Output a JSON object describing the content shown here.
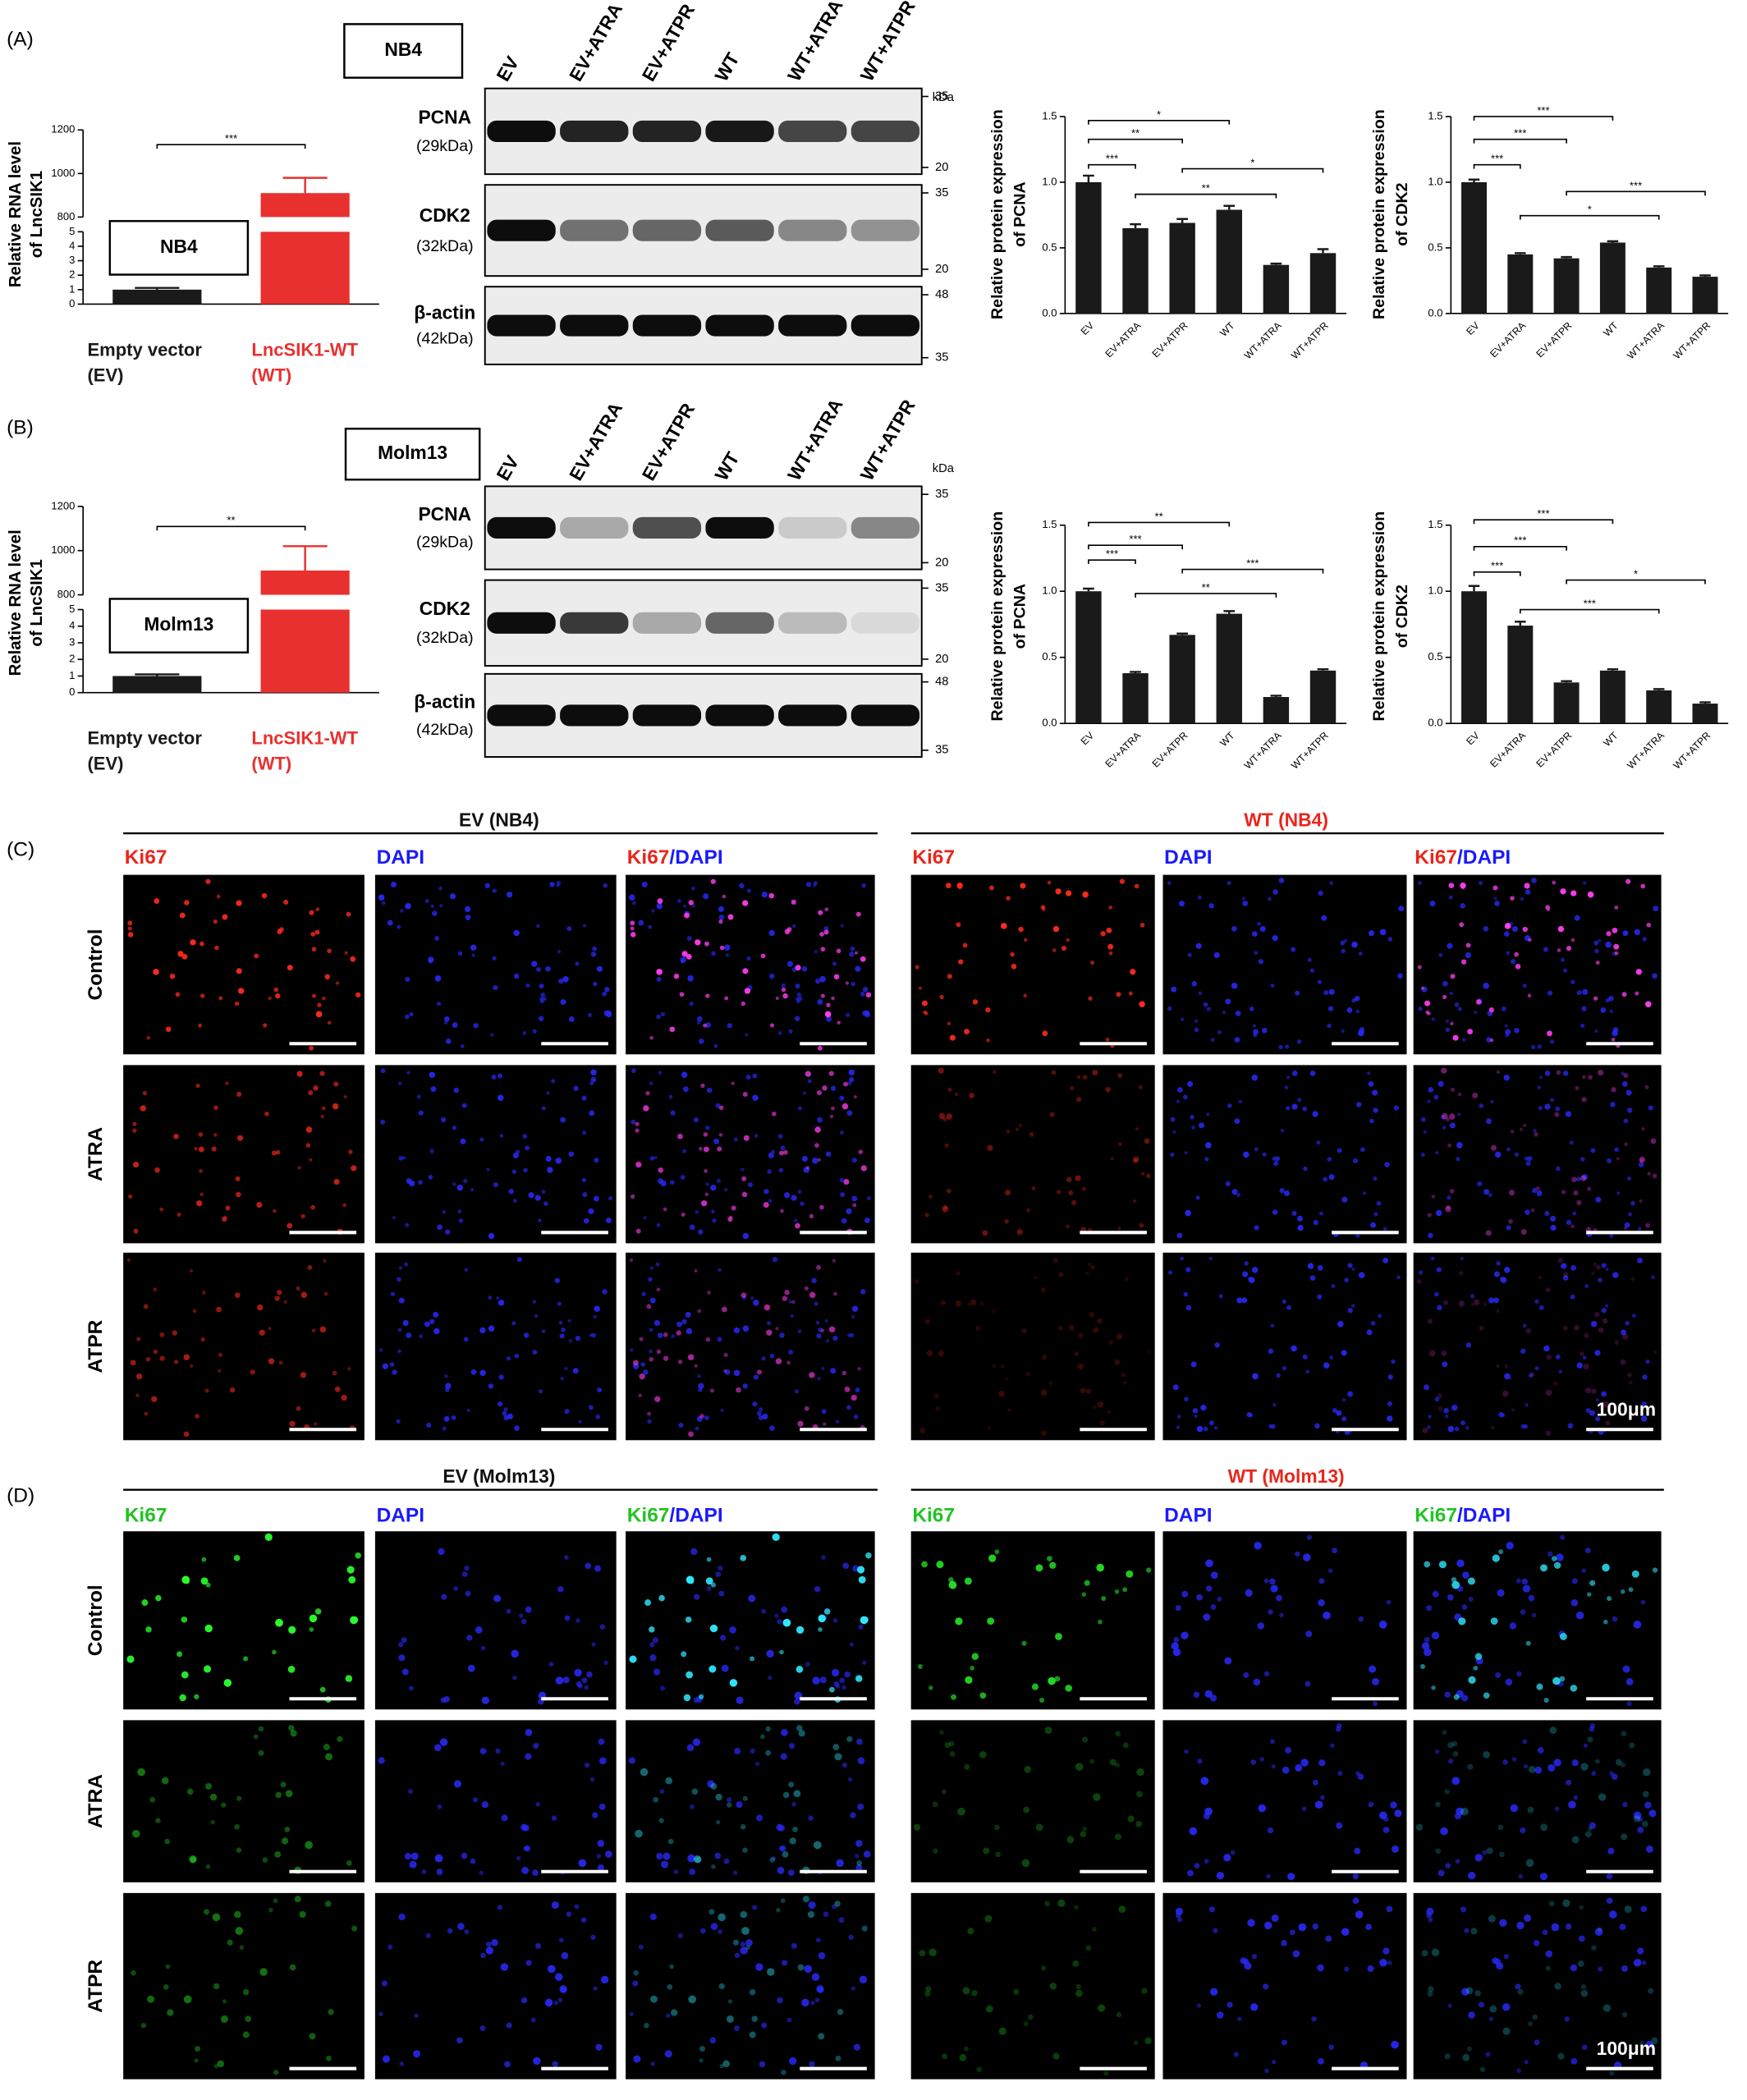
{
  "panel_labels": [
    "(A)",
    "(B)",
    "(C)",
    "(D)"
  ],
  "chart_data": [
    {
      "type": "bar",
      "ylabel": [
        "Relative RNA level",
        "of LncSIK1"
      ],
      "categories": [
        "Empty vector",
        "LncSIK1-WT"
      ],
      "category_sublabels": [
        "(EV)",
        "(WT)"
      ],
      "values": [
        1.0,
        910
      ],
      "errors": [
        0.12,
        70
      ],
      "colors": [
        "#1a1a1a",
        "#e8312f"
      ],
      "ylim": [
        0,
        1200
      ],
      "axis_break": [
        5,
        800
      ],
      "yticks": [
        0,
        1,
        2,
        3,
        4,
        5,
        800,
        1000,
        1200
      ],
      "inset_label": "NB4",
      "significance": [
        {
          "pair": [
            0,
            1
          ],
          "label": "***"
        }
      ]
    },
    {
      "type": "bar",
      "ylabel": [
        "Relative protein expression",
        "of PCNA"
      ],
      "categories": [
        "EV",
        "EV+ATRA",
        "EV+ATPR",
        "WT",
        "WT+ATRA",
        "WT+ATPR"
      ],
      "values": [
        1.0,
        0.65,
        0.69,
        0.79,
        0.37,
        0.46
      ],
      "errors": [
        0.05,
        0.03,
        0.03,
        0.03,
        0.01,
        0.03
      ],
      "color": "#1a1a1a",
      "ylim": [
        0,
        1.5
      ],
      "yticks": [
        {
          "value": 0,
          "label": "0.0"
        },
        0.5,
        {
          "value": 1,
          "label": "1.0"
        },
        1.5
      ],
      "significance": [
        {
          "pair": [
            0,
            1
          ],
          "label": "***"
        },
        {
          "pair": [
            0,
            2
          ],
          "label": "**"
        },
        {
          "pair": [
            0,
            3
          ],
          "label": "*"
        },
        {
          "pair": [
            1,
            4
          ],
          "label": "**"
        },
        {
          "pair": [
            2,
            5
          ],
          "label": "*"
        }
      ]
    },
    {
      "type": "bar",
      "ylabel": [
        "Relative protein expression",
        "of CDK2"
      ],
      "categories": [
        "EV",
        "EV+ATRA",
        "EV+ATPR",
        "WT",
        "WT+ATRA",
        "WT+ATPR"
      ],
      "values": [
        1.0,
        0.45,
        0.42,
        0.54,
        0.35,
        0.28
      ],
      "errors": [
        0.02,
        0.01,
        0.01,
        0.01,
        0.01,
        0.01
      ],
      "color": "#1a1a1a",
      "ylim": [
        0,
        1.5
      ],
      "yticks": [
        {
          "value": 0,
          "label": "0.0"
        },
        0.5,
        {
          "value": 1,
          "label": "1.0"
        },
        1.5
      ],
      "significance": [
        {
          "pair": [
            0,
            1
          ],
          "label": "***"
        },
        {
          "pair": [
            0,
            2
          ],
          "label": "***"
        },
        {
          "pair": [
            0,
            3
          ],
          "label": "***"
        },
        {
          "pair": [
            1,
            4
          ],
          "label": "*"
        },
        {
          "pair": [
            2,
            5
          ],
          "label": "***"
        }
      ]
    },
    {
      "type": "bar",
      "ylabel": [
        "Relative RNA level",
        "of LncSIK1"
      ],
      "categories": [
        "Empty vector",
        "LncSIK1-WT"
      ],
      "category_sublabels": [
        "(EV)",
        "(WT)"
      ],
      "values": [
        1.0,
        910
      ],
      "errors": [
        0.1,
        110
      ],
      "colors": [
        "#1a1a1a",
        "#e8312f"
      ],
      "ylim": [
        0,
        1200
      ],
      "axis_break": [
        5,
        800
      ],
      "yticks": [
        0,
        1,
        2,
        3,
        4,
        5,
        800,
        1000,
        1200
      ],
      "inset_label": "Molm13",
      "significance": [
        {
          "pair": [
            0,
            1
          ],
          "label": "**"
        }
      ]
    },
    {
      "type": "bar",
      "ylabel": [
        "Relative protein expression",
        "of PCNA"
      ],
      "categories": [
        "EV",
        "EV+ATRA",
        "EV+ATPR",
        "WT",
        "WT+ATRA",
        "WT+ATPR"
      ],
      "values": [
        1.0,
        0.38,
        0.67,
        0.83,
        0.2,
        0.4
      ],
      "errors": [
        0.02,
        0.01,
        0.01,
        0.02,
        0.01,
        0.01
      ],
      "color": "#1a1a1a",
      "ylim": [
        0,
        1.5
      ],
      "yticks": [
        {
          "value": 0,
          "label": "0.0"
        },
        0.5,
        {
          "value": 1,
          "label": "1.0"
        },
        1.5
      ],
      "significance": [
        {
          "pair": [
            0,
            1
          ],
          "label": "***"
        },
        {
          "pair": [
            0,
            2
          ],
          "label": "***"
        },
        {
          "pair": [
            0,
            3
          ],
          "label": "**"
        },
        {
          "pair": [
            1,
            4
          ],
          "label": "**"
        },
        {
          "pair": [
            2,
            5
          ],
          "label": "***"
        }
      ]
    },
    {
      "type": "bar",
      "ylabel": [
        "Relative protein expression",
        "of CDK2"
      ],
      "categories": [
        "EV",
        "EV+ATRA",
        "EV+ATPR",
        "WT",
        "WT+ATRA",
        "WT+ATPR"
      ],
      "values": [
        1.0,
        0.74,
        0.31,
        0.4,
        0.25,
        0.15
      ],
      "errors": [
        0.04,
        0.03,
        0.01,
        0.01,
        0.01,
        0.01
      ],
      "color": "#1a1a1a",
      "ylim": [
        0,
        1.5
      ],
      "yticks": [
        {
          "value": 0,
          "label": "0.0"
        },
        0.5,
        {
          "value": 1,
          "label": "1.0"
        },
        1.5
      ],
      "significance": [
        {
          "pair": [
            0,
            1
          ],
          "label": "***"
        },
        {
          "pair": [
            0,
            2
          ],
          "label": "***"
        },
        {
          "pair": [
            0,
            3
          ],
          "label": "***"
        },
        {
          "pair": [
            1,
            4
          ],
          "label": "***"
        },
        {
          "pair": [
            2,
            5
          ],
          "label": "*"
        }
      ]
    }
  ],
  "blots": [
    {
      "cell_line": "NB4",
      "lanes": [
        "EV",
        "EV+ATRA",
        "EV+ATPR",
        "WT",
        "WT+ATRA",
        "WT+ATPR"
      ],
      "unit": "kDa",
      "rows": [
        {
          "protein": "PCNA",
          "size": "(29kDa)",
          "markers": [
            35,
            20
          ]
        },
        {
          "protein": "CDK2",
          "size": "(32kDa)",
          "markers": [
            35,
            20
          ]
        },
        {
          "protein": "β-actin",
          "size": "(42kDa)",
          "markers": [
            48,
            35
          ]
        }
      ]
    },
    {
      "cell_line": "Molm13",
      "lanes": [
        "EV",
        "EV+ATRA",
        "EV+ATPR",
        "WT",
        "WT+ATRA",
        "WT+ATPR"
      ],
      "unit": "kDa",
      "rows": [
        {
          "protein": "PCNA",
          "size": "(29kDa)",
          "markers": [
            35,
            20
          ]
        },
        {
          "protein": "CDK2",
          "size": "(32kDa)",
          "markers": [
            35,
            20
          ]
        },
        {
          "protein": "β-actin",
          "size": "(42kDa)",
          "markers": [
            48,
            35
          ]
        }
      ]
    }
  ],
  "imaging": [
    {
      "groups": [
        {
          "title": "EV (NB4)",
          "columns": [
            [
              "Ki67"
            ],
            [
              "DAPI"
            ],
            [
              "Ki67",
              "/DAPI"
            ]
          ]
        },
        {
          "title": "WT (NB4)",
          "columns": [
            [
              "Ki67"
            ],
            [
              "DAPI"
            ],
            [
              "Ki67",
              "/DAPI"
            ]
          ]
        }
      ],
      "rows": [
        "Control",
        "ATRA",
        "ATPR"
      ],
      "scale_bar": "100μm"
    },
    {
      "groups": [
        {
          "title": "EV (Molm13)",
          "columns": [
            [
              "Ki67"
            ],
            [
              "DAPI"
            ],
            [
              "Ki67",
              "/DAPI"
            ]
          ]
        },
        {
          "title": "WT (Molm13)",
          "columns": [
            [
              "Ki67"
            ],
            [
              "DAPI"
            ],
            [
              "Ki67",
              "/DAPI"
            ]
          ]
        }
      ],
      "rows": [
        "Control",
        "ATRA",
        "ATPR"
      ],
      "scale_bar": "100μm"
    }
  ]
}
